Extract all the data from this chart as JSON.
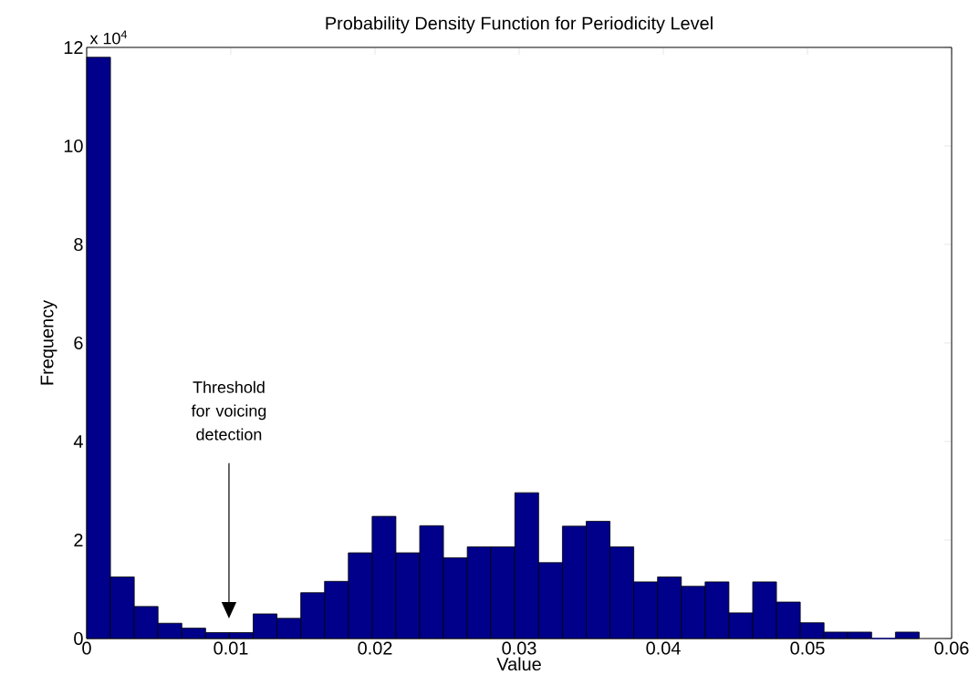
{
  "chart_data": {
    "type": "histogram",
    "title": "Probability Density Function for Periodicity Level",
    "xlabel": "Value",
    "ylabel": "Frequency",
    "color": "#00008b",
    "bins": [
      0,
      0.00165,
      0.0033,
      0.00495,
      0.0066,
      0.00825,
      0.0099,
      0.01155,
      0.0132,
      0.01485,
      0.0165,
      0.01815,
      0.0198,
      0.02145,
      0.0231,
      0.02475,
      0.0264,
      0.02805,
      0.0297,
      0.03135,
      0.033,
      0.03465,
      0.0363,
      0.03795,
      0.0396,
      0.04125,
      0.0429,
      0.04455,
      0.0462,
      0.04785,
      0.0495,
      0.05115,
      0.0528,
      0.05445,
      0.0561,
      0.05775
    ],
    "values": [
      11.8,
      1.25,
      0.65,
      0.31,
      0.21,
      0.12,
      0.12,
      0.5,
      0.41,
      0.93,
      1.16,
      1.74,
      2.48,
      1.74,
      2.29,
      1.64,
      1.86,
      1.86,
      2.96,
      1.54,
      2.28,
      2.38,
      1.86,
      1.15,
      1.25,
      1.06,
      1.15,
      0.52,
      1.15,
      0.74,
      0.32,
      0.13,
      0.13,
      0,
      0.13
    ],
    "xlim": [
      0,
      0.06
    ],
    "xticks": [
      0,
      0.01,
      0.02,
      0.03,
      0.04,
      0.05,
      0.06
    ],
    "ylim": [
      0,
      12
    ],
    "yticks": [
      0,
      2,
      4,
      6,
      8,
      10,
      12
    ],
    "annotations": [
      "Threshold for voicing detection",
      "x 10$^{4}$"
    ],
    "grid": false,
    "legend": false
  }
}
